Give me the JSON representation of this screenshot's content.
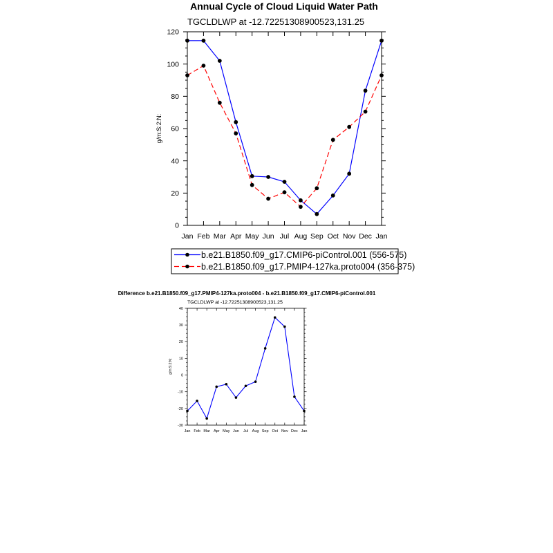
{
  "chart_data": [
    {
      "type": "line",
      "title": "Annual Cycle of Cloud Liquid Water Path",
      "subtitle": "TGCLDLWP at -12.72251308900523,131.25",
      "ylabel": "g/m:S:2:N:",
      "ylim": [
        0,
        120
      ],
      "yticks": [
        0,
        20,
        40,
        60,
        80,
        100,
        120
      ],
      "categories": [
        "Jan",
        "Feb",
        "Mar",
        "Apr",
        "May",
        "Jun",
        "Jul",
        "Aug",
        "Sep",
        "Oct",
        "Nov",
        "Dec",
        "Jan"
      ],
      "grid": false,
      "legend_placement": "below",
      "series": [
        {
          "name": "b.e21.B1850.f09_g17.CMIP6-piControl.001 (556-575)",
          "color": "#0000ff",
          "dash": "solid",
          "values": [
            114.5,
            114.5,
            102,
            64,
            30.5,
            30,
            27,
            15.5,
            7,
            18.5,
            32,
            83.5,
            114.5
          ]
        },
        {
          "name": "b.e21.B1850.f09_g17.PMIP4-127ka.proto004 (356-375)",
          "color": "#ff0000",
          "dash": "dashed",
          "values": [
            93,
            99,
            76,
            57,
            25,
            16.5,
            20.5,
            11.5,
            23,
            53,
            61,
            70.5,
            93
          ]
        }
      ]
    },
    {
      "type": "line",
      "title": "Difference b.e21.B1850.f09_g17.PMIP4-127ka.proto004 - b.e21.B1850.f09_g17.CMIP6-piControl.001",
      "subtitle": "TGCLDLWP at -12.72251308900523,131.25",
      "ylabel": "g/m:S:2:N:",
      "ylim": [
        -30,
        40
      ],
      "yticks": [
        -30,
        -20,
        -10,
        0,
        10,
        20,
        30,
        40
      ],
      "categories": [
        "Jan",
        "Feb",
        "Mar",
        "Apr",
        "May",
        "Jun",
        "Jul",
        "Aug",
        "Sep",
        "Oct",
        "Nov",
        "Dec",
        "Jan"
      ],
      "grid": false,
      "series": [
        {
          "color": "#0000ff",
          "dash": "solid",
          "values": [
            -21.5,
            -15.5,
            -26,
            -7,
            -5.5,
            -13.5,
            -6.5,
            -4,
            16,
            34.5,
            29,
            -13,
            -21.5
          ]
        }
      ]
    }
  ]
}
